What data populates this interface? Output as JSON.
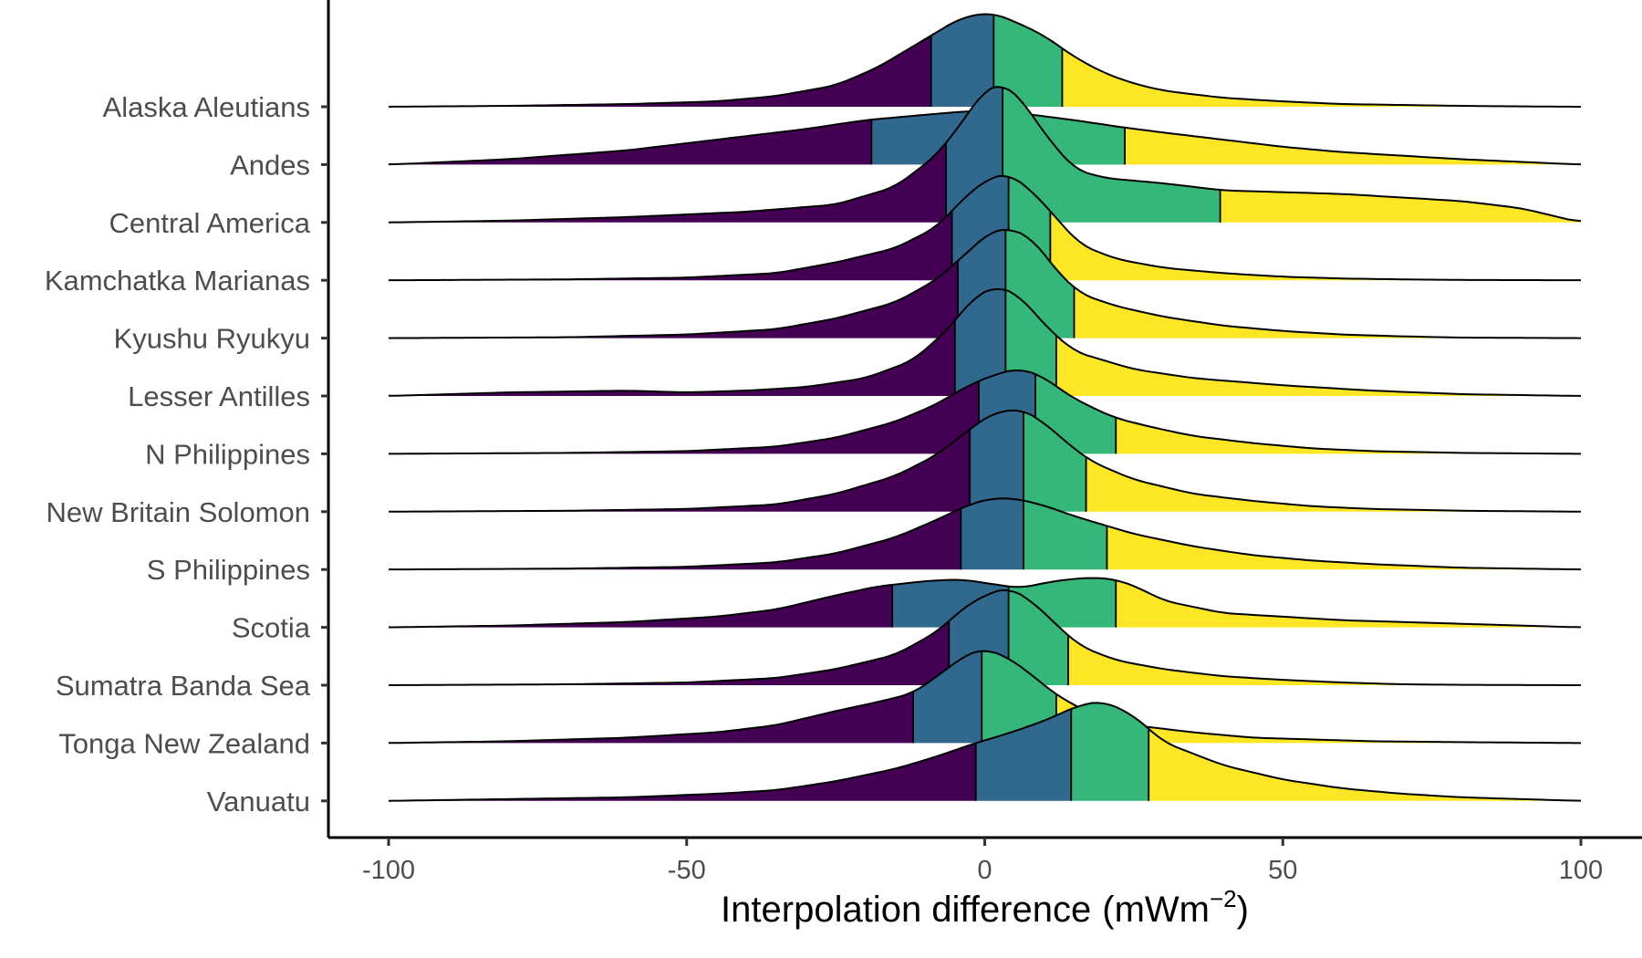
{
  "chart_data": {
    "type": "ridgeline",
    "title": "",
    "xlabel": "Interpolation difference",
    "xlabel_unit_main": "mWm",
    "xlabel_unit_sup": "−2",
    "xlabel_paren_open": "(",
    "xlabel_paren_close": ")",
    "ylabel": "",
    "xlim": [
      -100,
      100
    ],
    "x_ticks": [
      -100,
      -50,
      0,
      50,
      100
    ],
    "x_tick_labels": [
      "-100",
      "-50",
      "0",
      "50",
      "100"
    ],
    "grid": false,
    "legend": "none",
    "quantile_colors": [
      "#440154",
      "#31688E",
      "#35B779",
      "#FDE725"
    ],
    "outline_color": "#000000",
    "series": [
      {
        "name": "Alaska Aleutians",
        "quantiles": [
          -9,
          1.5,
          13
        ],
        "density_x": [
          -100,
          -80,
          -60,
          -45,
          -35,
          -25,
          -18,
          -10,
          -4,
          1,
          5,
          10,
          15,
          20,
          25,
          30,
          40,
          50,
          60,
          70,
          80,
          90,
          100
        ],
        "density_y": [
          0,
          0.5,
          1.5,
          3,
          6,
          12,
          22,
          38,
          50,
          53,
          48,
          40,
          28,
          19,
          13,
          9,
          5,
          3,
          1.5,
          1,
          0.5,
          0.2,
          0
        ]
      },
      {
        "name": "Andes",
        "quantiles": [
          -19,
          2.5,
          23.5
        ],
        "density_x": [
          -100,
          -80,
          -60,
          -50,
          -40,
          -30,
          -20,
          -10,
          -3,
          3,
          8,
          15,
          23,
          30,
          40,
          50,
          60,
          70,
          80,
          90,
          100
        ],
        "density_y": [
          0,
          3,
          8,
          12,
          16,
          20,
          25,
          28,
          30,
          30,
          28,
          25,
          21,
          18,
          14,
          10,
          7,
          5,
          3,
          1.5,
          0
        ]
      },
      {
        "name": "Central America",
        "quantiles": [
          -6.5,
          3,
          39.5
        ],
        "density_x": [
          -100,
          -80,
          -60,
          -40,
          -25,
          -15,
          -8,
          -3,
          0,
          3,
          6,
          10,
          15,
          20,
          30,
          40,
          50,
          60,
          70,
          80,
          90,
          100
        ],
        "density_y": [
          0,
          1,
          3,
          6,
          10,
          20,
          38,
          60,
          75,
          78,
          70,
          50,
          30,
          25,
          22,
          18,
          17,
          16,
          14,
          12,
          8,
          0
        ]
      },
      {
        "name": "Kamchatka Marianas",
        "quantiles": [
          -5.5,
          4,
          11
        ],
        "density_x": [
          -100,
          -70,
          -50,
          -35,
          -25,
          -15,
          -8,
          -3,
          1,
          4,
          8,
          12,
          16,
          22,
          30,
          40,
          50,
          60,
          70,
          80,
          100
        ],
        "density_y": [
          0,
          0.5,
          1.5,
          4,
          10,
          18,
          30,
          48,
          58,
          60,
          50,
          35,
          20,
          12,
          7,
          4,
          2,
          1,
          0.5,
          0.2,
          0
        ]
      },
      {
        "name": "Kyushu Ryukyu",
        "quantiles": [
          -4.5,
          3.5,
          15
        ],
        "density_x": [
          -100,
          -70,
          -50,
          -35,
          -25,
          -15,
          -8,
          -3,
          1,
          4,
          8,
          12,
          16,
          22,
          30,
          40,
          50,
          60,
          70,
          80,
          100
        ],
        "density_y": [
          0,
          0.5,
          2,
          5,
          11,
          20,
          33,
          48,
          60,
          62,
          56,
          38,
          25,
          18,
          12,
          7,
          4,
          2,
          1,
          0.3,
          0
        ]
      },
      {
        "name": "Lesser Antilles",
        "quantiles": [
          -5,
          3.5,
          12
        ],
        "density_x": [
          -100,
          -80,
          -60,
          -50,
          -40,
          -30,
          -20,
          -12,
          -6,
          -2,
          2,
          6,
          10,
          15,
          25,
          35,
          50,
          65,
          80,
          100
        ],
        "density_y": [
          0,
          2,
          3,
          2,
          3,
          5,
          10,
          20,
          38,
          55,
          62,
          56,
          40,
          25,
          15,
          10,
          6,
          3,
          1,
          0
        ]
      },
      {
        "name": "N Philippines",
        "quantiles": [
          -1,
          8.5,
          22
        ],
        "density_x": [
          -100,
          -70,
          -50,
          -35,
          -25,
          -15,
          -8,
          -3,
          2,
          6,
          10,
          14,
          18,
          22,
          28,
          35,
          45,
          55,
          65,
          80,
          100
        ],
        "density_y": [
          0,
          0.5,
          1.5,
          4,
          9,
          18,
          28,
          38,
          45,
          48,
          43,
          33,
          26,
          20,
          15,
          10,
          6,
          3,
          1.5,
          0.5,
          0
        ]
      },
      {
        "name": "New Britain Solomon",
        "quantiles": [
          -2.5,
          6.5,
          17
        ],
        "density_x": [
          -100,
          -70,
          -50,
          -35,
          -25,
          -15,
          -8,
          -3,
          1,
          6,
          10,
          14,
          18,
          25,
          35,
          45,
          55,
          65,
          80,
          100
        ],
        "density_y": [
          0,
          0.5,
          1.5,
          4,
          10,
          20,
          32,
          45,
          55,
          58,
          50,
          38,
          28,
          18,
          10,
          6,
          3,
          1.5,
          0.5,
          0
        ]
      },
      {
        "name": "S Philippines",
        "quantiles": [
          -4,
          6.5,
          20.5
        ],
        "density_x": [
          -100,
          -70,
          -50,
          -35,
          -25,
          -15,
          -8,
          -3,
          1,
          5,
          10,
          15,
          20,
          25,
          35,
          45,
          55,
          65,
          80,
          100
        ],
        "density_y": [
          0,
          0.5,
          1.5,
          4,
          9,
          18,
          28,
          36,
          40,
          40,
          36,
          30,
          25,
          20,
          13,
          8,
          5,
          3,
          1,
          0
        ]
      },
      {
        "name": "Scotia",
        "quantiles": [
          -15.5,
          4,
          22
        ],
        "density_x": [
          -100,
          -80,
          -60,
          -45,
          -35,
          -25,
          -18,
          -10,
          -4,
          2,
          6,
          10,
          14,
          18,
          22,
          26,
          30,
          40,
          50,
          60,
          70,
          80,
          100
        ],
        "density_y": [
          0,
          1,
          3,
          6,
          10,
          18,
          23,
          26,
          27,
          24,
          22,
          25,
          27,
          28,
          27,
          22,
          15,
          8,
          6,
          4,
          3,
          2,
          0
        ]
      },
      {
        "name": "Sumatra Banda Sea",
        "quantiles": [
          -6,
          4,
          14
        ],
        "density_x": [
          -100,
          -70,
          -50,
          -35,
          -25,
          -15,
          -8,
          -3,
          1,
          4,
          8,
          12,
          16,
          22,
          30,
          40,
          50,
          60,
          70,
          80,
          100
        ],
        "density_y": [
          0,
          0.5,
          1.5,
          4,
          9,
          17,
          30,
          45,
          52,
          55,
          47,
          34,
          22,
          14,
          9,
          5,
          3,
          1.5,
          0.5,
          0.2,
          0
        ]
      },
      {
        "name": "Tonga New Zealand",
        "quantiles": [
          -12,
          -0.5,
          12
        ],
        "density_x": [
          -100,
          -80,
          -60,
          -45,
          -35,
          -25,
          -18,
          -12,
          -7,
          -3,
          0,
          4,
          8,
          12,
          18,
          25,
          35,
          45,
          55,
          65,
          80,
          100
        ],
        "density_y": [
          0,
          1,
          3,
          6,
          10,
          18,
          23,
          28,
          40,
          50,
          53,
          48,
          38,
          27,
          16,
          10,
          6,
          3,
          2,
          1,
          0.5,
          0
        ]
      },
      {
        "name": "Vanuatu",
        "quantiles": [
          -1.5,
          14.5,
          27.5
        ],
        "density_x": [
          -100,
          -80,
          -60,
          -45,
          -35,
          -25,
          -15,
          -8,
          -2,
          4,
          10,
          16,
          20,
          25,
          30,
          40,
          50,
          60,
          70,
          80,
          100
        ],
        "density_y": [
          0,
          1,
          2,
          4,
          6,
          11,
          18,
          25,
          32,
          38,
          45,
          54,
          56,
          48,
          33,
          20,
          12,
          7,
          4,
          2,
          0
        ]
      }
    ]
  }
}
